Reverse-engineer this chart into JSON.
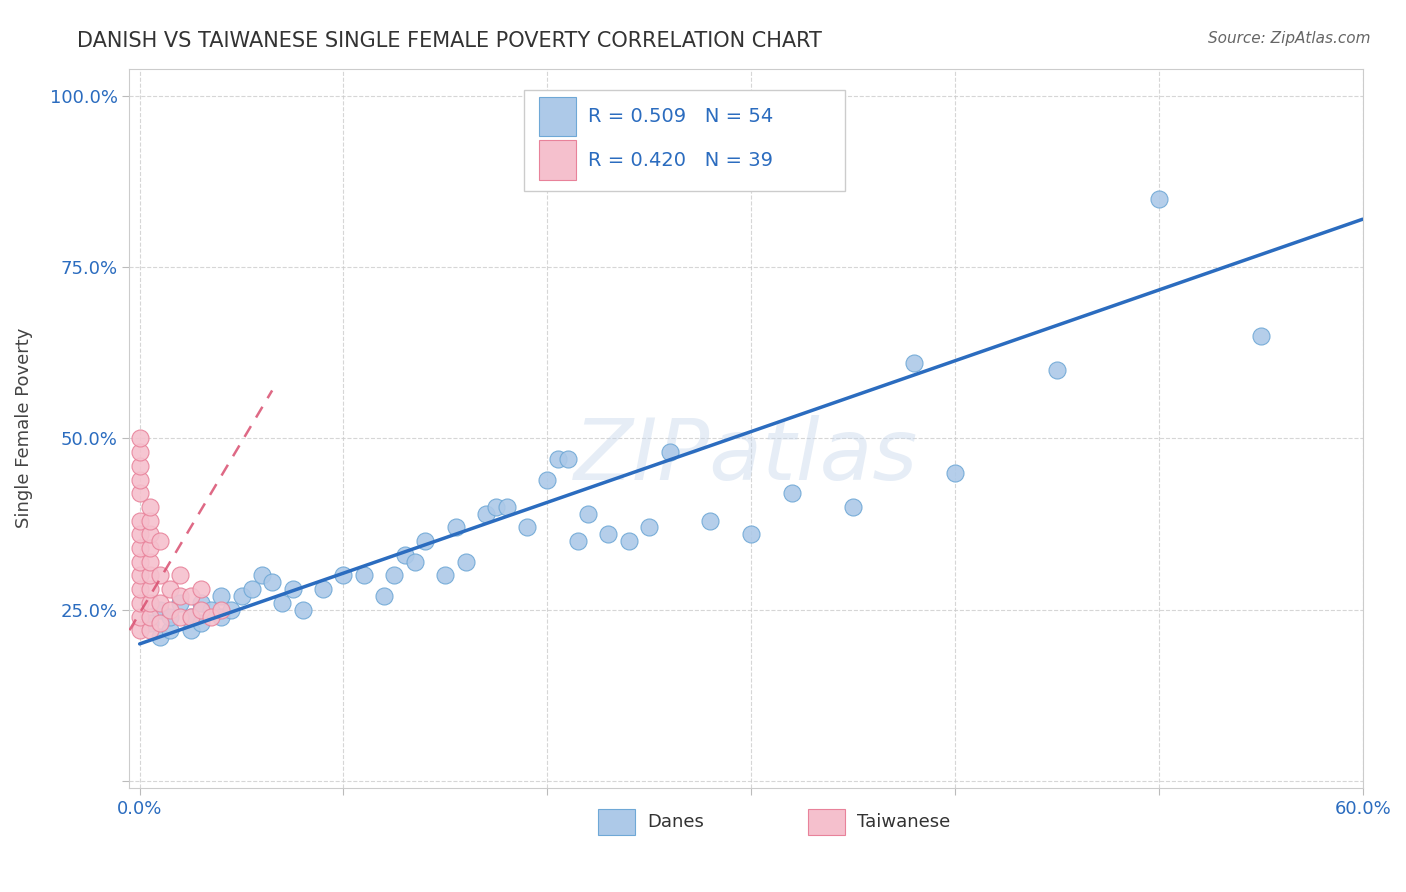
{
  "title": "DANISH VS TAIWANESE SINGLE FEMALE POVERTY CORRELATION CHART",
  "source": "Source: ZipAtlas.com",
  "ylabel": "Single Female Poverty",
  "xlim": [
    -0.005,
    0.6
  ],
  "ylim": [
    -0.01,
    1.04
  ],
  "x_ticks": [
    0.0,
    0.1,
    0.2,
    0.3,
    0.4,
    0.5,
    0.6
  ],
  "x_tick_labels": [
    "0.0%",
    "",
    "",
    "",
    "",
    "",
    "60.0%"
  ],
  "y_ticks": [
    0.0,
    0.25,
    0.5,
    0.75,
    1.0
  ],
  "y_tick_labels": [
    "",
    "25.0%",
    "50.0%",
    "75.0%",
    "100.0%"
  ],
  "danes_R": 0.509,
  "danes_N": 54,
  "taiwanese_R": 0.42,
  "taiwanese_N": 39,
  "danes_color": "#adc9e8",
  "danes_edge_color": "#6fa8d6",
  "danes_line_color": "#2b6cbf",
  "taiwanese_color": "#f5c0cd",
  "taiwanese_edge_color": "#e8829a",
  "taiwanese_line_color": "#d94f70",
  "legend_color": "#2b6cbf",
  "watermark": "ZIPatlas",
  "danes_x": [
    0.005,
    0.01,
    0.01,
    0.015,
    0.015,
    0.02,
    0.025,
    0.025,
    0.03,
    0.03,
    0.035,
    0.04,
    0.04,
    0.045,
    0.05,
    0.055,
    0.06,
    0.065,
    0.07,
    0.075,
    0.08,
    0.09,
    0.1,
    0.11,
    0.12,
    0.125,
    0.13,
    0.135,
    0.14,
    0.15,
    0.155,
    0.16,
    0.17,
    0.175,
    0.18,
    0.19,
    0.2,
    0.205,
    0.21,
    0.215,
    0.22,
    0.23,
    0.24,
    0.25,
    0.26,
    0.28,
    0.3,
    0.32,
    0.35,
    0.38,
    0.4,
    0.45,
    0.5,
    0.55
  ],
  "danes_y": [
    0.23,
    0.21,
    0.25,
    0.22,
    0.24,
    0.26,
    0.22,
    0.24,
    0.23,
    0.26,
    0.25,
    0.24,
    0.27,
    0.25,
    0.27,
    0.28,
    0.3,
    0.29,
    0.26,
    0.28,
    0.25,
    0.28,
    0.3,
    0.3,
    0.27,
    0.3,
    0.33,
    0.32,
    0.35,
    0.3,
    0.37,
    0.32,
    0.39,
    0.4,
    0.4,
    0.37,
    0.44,
    0.47,
    0.47,
    0.35,
    0.39,
    0.36,
    0.35,
    0.37,
    0.48,
    0.38,
    0.36,
    0.42,
    0.4,
    0.61,
    0.45,
    0.6,
    0.85,
    0.65
  ],
  "taiwanese_x": [
    0.0,
    0.0,
    0.0,
    0.0,
    0.0,
    0.0,
    0.0,
    0.0,
    0.0,
    0.0,
    0.0,
    0.0,
    0.0,
    0.0,
    0.005,
    0.005,
    0.005,
    0.005,
    0.005,
    0.005,
    0.005,
    0.005,
    0.005,
    0.005,
    0.01,
    0.01,
    0.01,
    0.01,
    0.015,
    0.015,
    0.02,
    0.02,
    0.02,
    0.025,
    0.025,
    0.03,
    0.03,
    0.035,
    0.04
  ],
  "taiwanese_y": [
    0.22,
    0.24,
    0.26,
    0.28,
    0.3,
    0.32,
    0.34,
    0.36,
    0.38,
    0.42,
    0.44,
    0.46,
    0.48,
    0.5,
    0.22,
    0.24,
    0.26,
    0.28,
    0.3,
    0.32,
    0.34,
    0.36,
    0.38,
    0.4,
    0.23,
    0.26,
    0.3,
    0.35,
    0.25,
    0.28,
    0.24,
    0.27,
    0.3,
    0.24,
    0.27,
    0.25,
    0.28,
    0.24,
    0.25
  ],
  "danes_trendline_x": [
    0.0,
    0.6
  ],
  "danes_trendline_y": [
    0.2,
    0.82
  ],
  "taiwanese_trendline_x": [
    -0.005,
    0.065
  ],
  "taiwanese_trendline_y": [
    0.22,
    0.57
  ],
  "background_color": "#ffffff",
  "grid_color": "#cccccc"
}
